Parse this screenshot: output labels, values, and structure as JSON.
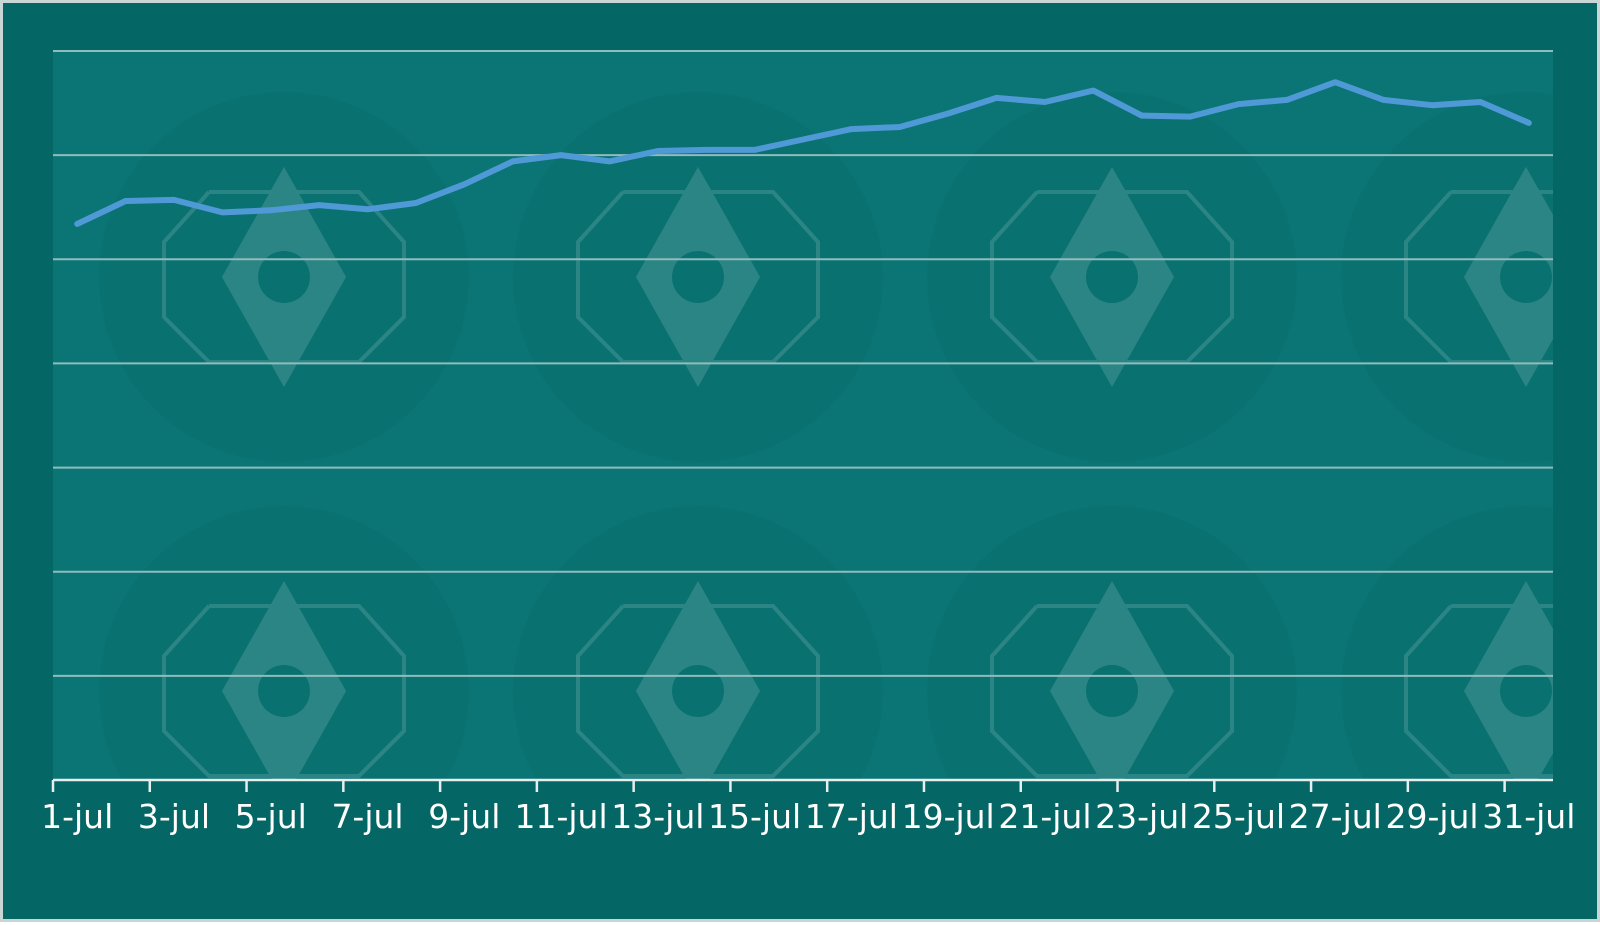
{
  "colors": {
    "background": "#056666",
    "plot_area": "#0b7575",
    "gridline": "#8fbcbc",
    "series_line": "#4f9ad6",
    "axis": "#e6eeee",
    "text": "#ffffff"
  },
  "chart_data": {
    "type": "line",
    "title": "",
    "xlabel": "",
    "ylabel": "",
    "x": [
      "1-jul",
      "2-jul",
      "3-jul",
      "4-jul",
      "5-jul",
      "6-jul",
      "7-jul",
      "8-jul",
      "9-jul",
      "10-jul",
      "11-jul",
      "12-jul",
      "13-jul",
      "14-jul",
      "15-jul",
      "16-jul",
      "17-jul",
      "18-jul",
      "19-jul",
      "20-jul",
      "21-jul",
      "22-jul",
      "23-jul",
      "24-jul",
      "25-jul",
      "26-jul",
      "27-jul",
      "28-jul",
      "29-jul",
      "30-jul",
      "31-jul"
    ],
    "tick_labels": [
      "1-jul",
      "3-jul",
      "5-jul",
      "7-jul",
      "9-jul",
      "11-jul",
      "13-jul",
      "15-jul",
      "17-jul",
      "19-jul",
      "21-jul",
      "23-jul",
      "25-jul",
      "27-jul",
      "29-jul",
      "31-jul"
    ],
    "series": [
      {
        "values": [
          5.34,
          5.56,
          5.57,
          5.45,
          5.47,
          5.52,
          5.48,
          5.54,
          5.72,
          5.94,
          6.0,
          5.94,
          6.04,
          6.05,
          6.05,
          6.15,
          6.25,
          6.27,
          6.4,
          6.55,
          6.51,
          6.62,
          6.38,
          6.37,
          6.49,
          6.53,
          6.7,
          6.53,
          6.48,
          6.51,
          6.31
        ]
      }
    ],
    "ylim": [
      0,
      7
    ],
    "yticks": [
      0,
      1,
      2,
      3,
      4,
      5,
      6,
      7
    ],
    "y_tick_labels_shown": false,
    "grid": true,
    "legend": "none"
  }
}
